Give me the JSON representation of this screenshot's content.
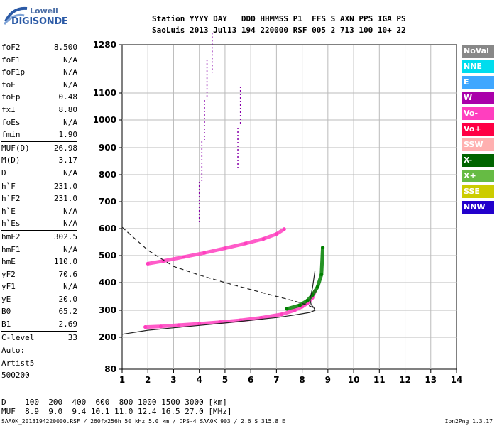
{
  "logo": {
    "line1": "Lowell",
    "line2": "DIGISONDE"
  },
  "header": {
    "line1": "Station YYYY DAY   DDD HHMMSS P1  FFS S AXN PPS IGA PS",
    "line2": "SaoLuis 2013 Jul13 194 220000 RSF 005 2 713 100 10+ 22"
  },
  "params": [
    {
      "k": "foF2",
      "v": "8.500"
    },
    {
      "k": "foF1",
      "v": "N/A"
    },
    {
      "k": "foF1p",
      "v": "N/A"
    },
    {
      "k": "foE",
      "v": "N/A"
    },
    {
      "k": "foEp",
      "v": "0.48"
    },
    {
      "k": "fxI",
      "v": "8.80"
    },
    {
      "k": "foEs",
      "v": "N/A"
    },
    {
      "k": "fmin",
      "v": "1.90"
    },
    {
      "k": "MUF(D)",
      "v": "26.98",
      "sep": true
    },
    {
      "k": "M(D)",
      "v": "3.17"
    },
    {
      "k": "D",
      "v": "N/A"
    },
    {
      "k": "h`F",
      "v": "231.0",
      "sep": true
    },
    {
      "k": "h`F2",
      "v": "231.0"
    },
    {
      "k": "h`E",
      "v": "N/A"
    },
    {
      "k": "h`Es",
      "v": "N/A"
    },
    {
      "k": "hmF2",
      "v": "302.5",
      "sep": true
    },
    {
      "k": "hmF1",
      "v": "N/A"
    },
    {
      "k": "hmE",
      "v": "110.0"
    },
    {
      "k": "yF2",
      "v": "70.6"
    },
    {
      "k": "yF1",
      "v": "N/A"
    },
    {
      "k": "yE",
      "v": "20.0"
    },
    {
      "k": "B0",
      "v": "65.2"
    },
    {
      "k": "B1",
      "v": "2.69"
    },
    {
      "k": "C-level",
      "v": "33",
      "sep": true
    },
    {
      "k": "Auto:",
      "v": "",
      "sep": true
    },
    {
      "k": "Artist5",
      "v": ""
    },
    {
      "k": "500200",
      "v": ""
    }
  ],
  "chart_data": {
    "type": "scatter",
    "title": "",
    "xlabel": "",
    "ylabel": "",
    "xlim": [
      1,
      14
    ],
    "ylim": [
      80,
      1280
    ],
    "x_ticks": [
      "1",
      "2",
      "3",
      "4",
      "5",
      "6",
      "7",
      "8",
      "9",
      "10",
      "11",
      "12",
      "13",
      "14"
    ],
    "y_ticks": [
      "80",
      "200",
      "300",
      "400",
      "500",
      "600",
      "700",
      "800",
      "900",
      "1000",
      "1100",
      "1280"
    ],
    "y_scale": "ionogram (non-linear)",
    "grid": true,
    "series": [
      {
        "name": "O-trace lower F",
        "color": "#ff3fbf",
        "x": [
          1.9,
          2.5,
          3.2,
          4.0,
          4.8,
          5.6,
          6.4,
          7.2,
          7.7,
          8.0,
          8.2,
          8.4,
          8.5
        ],
        "y": [
          238,
          240,
          245,
          250,
          256,
          263,
          272,
          285,
          300,
          313,
          325,
          345,
          370
        ]
      },
      {
        "name": "X-trace lower F",
        "color": "#008000",
        "x": [
          7.4,
          7.9,
          8.2,
          8.4,
          8.6,
          8.75,
          8.8
        ],
        "y": [
          305,
          318,
          335,
          355,
          385,
          430,
          530
        ]
      },
      {
        "name": "O-trace 2nd hop",
        "color": "#ff3fbf",
        "x": [
          2.0,
          2.6,
          3.4,
          4.2,
          5.0,
          5.8,
          6.5,
          7.0,
          7.3
        ],
        "y": [
          470,
          480,
          495,
          510,
          527,
          545,
          562,
          580,
          598
        ]
      },
      {
        "name": "Vertical echoes",
        "color": "#8800aa",
        "x": [
          4.0,
          4.1,
          4.2,
          4.3,
          4.5,
          5.5,
          5.6
        ],
        "y": [
          700,
          850,
          1000,
          1150,
          1250,
          900,
          1050
        ]
      }
    ],
    "profile_line": {
      "x": [
        1.0,
        2.0,
        3.0,
        4.0,
        5.0,
        6.0,
        7.0,
        7.6,
        8.0,
        8.3,
        8.5,
        8.45,
        8.35,
        8.3,
        8.4,
        8.5
      ],
      "y": [
        211,
        226,
        235,
        244,
        253,
        263,
        273,
        281,
        287,
        292,
        300,
        310,
        320,
        340,
        380,
        445
      ]
    },
    "dashed_line": {
      "x": [
        1.0,
        2.0,
        3.0,
        4.0,
        5.0,
        6.0,
        7.0,
        7.6,
        8.0,
        8.3,
        8.5
      ],
      "y": [
        605,
        520,
        460,
        428,
        400,
        375,
        350,
        336,
        325,
        315,
        305
      ]
    }
  },
  "legend": [
    {
      "label": "NoVal",
      "color": "#888888"
    },
    {
      "label": "NNE",
      "color": "#00ddee"
    },
    {
      "label": "E",
      "color": "#3fa7ff"
    },
    {
      "label": "W",
      "color": "#aa00aa"
    },
    {
      "label": "Vo-",
      "color": "#ff3fbf"
    },
    {
      "label": "Vo+",
      "color": "#ff0044"
    },
    {
      "label": "SSW",
      "color": "#ffb0b0"
    },
    {
      "label": "X-",
      "color": "#006400"
    },
    {
      "label": "X+",
      "color": "#66bb44"
    },
    {
      "label": "SSE",
      "color": "#cccc00"
    },
    {
      "label": "NNW",
      "color": "#2200cc"
    }
  ],
  "footer": {
    "line1": "D    100  200  400  600  800 1000 1500 3000 [km]",
    "line2": "MUF  8.9  9.0  9.4 10.1 11.0 12.4 16.5 27.0 [MHz]",
    "line3": "SAA0K_2013194220000.RSF / 260fx256h 50 kHz 5.0 km / DPS-4 SAA0K 903 / 2.6 S 315.8 E",
    "version": "Ion2Png 1.3.17"
  }
}
